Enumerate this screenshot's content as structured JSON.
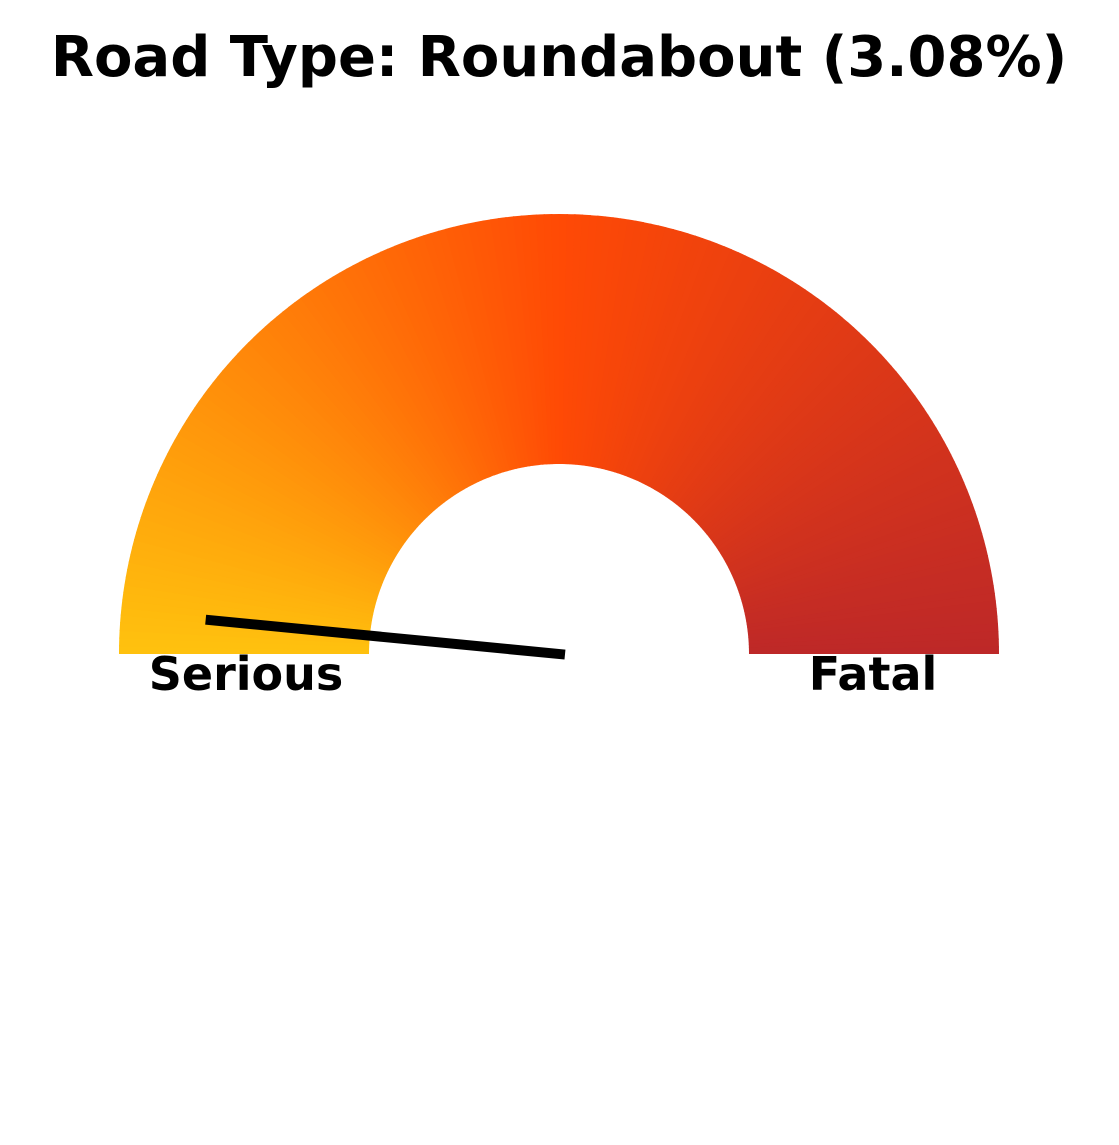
{
  "chart_data": {
    "type": "gauge",
    "title": "Road Type: Roundabout (3.08%)",
    "range": [
      0,
      100
    ],
    "value": 3.08,
    "labels": {
      "min": "Serious",
      "max": "Fatal"
    },
    "colors": {
      "start": "#FFC20E",
      "middle": "#FF4A05",
      "end": "#BD2828",
      "needle": "#000000"
    }
  }
}
